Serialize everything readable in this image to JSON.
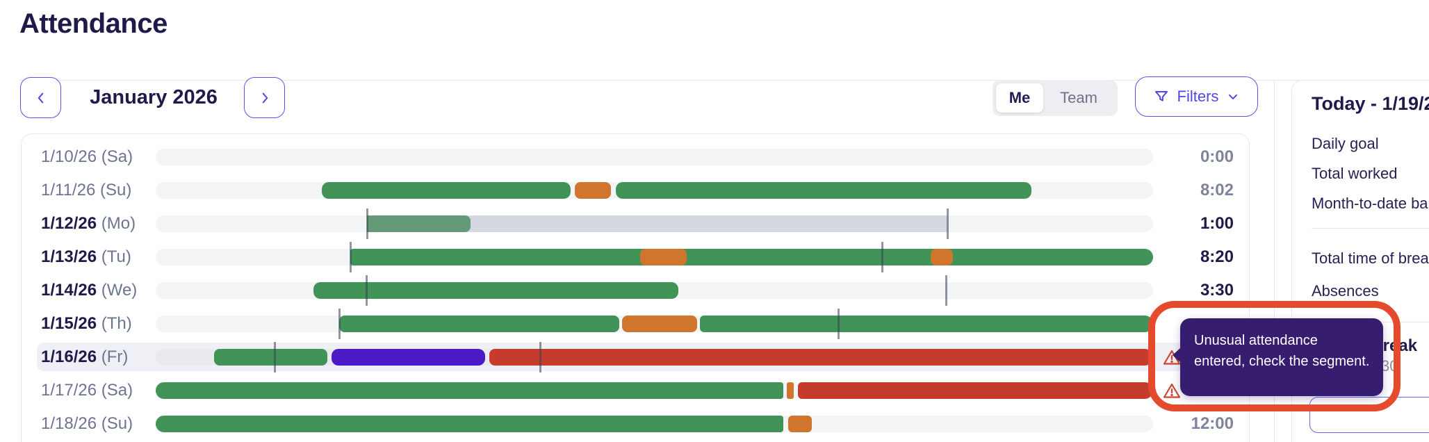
{
  "page": {
    "title": "Attendance"
  },
  "toolbar": {
    "month_label": "January 2026",
    "view_toggle": {
      "me_label": "Me",
      "team_label": "Team",
      "selected": "Me"
    },
    "filters_label": "Filters"
  },
  "timeline": {
    "track_width": 1435,
    "rows": [
      {
        "date": "1/10/26",
        "day": "(Sa)",
        "weekend": true,
        "total": "0:00",
        "highlight": false,
        "warning": false,
        "segments": [],
        "markers": []
      },
      {
        "date": "1/11/26",
        "day": "(Su)",
        "weekend": true,
        "total": "8:02",
        "highlight": false,
        "warning": false,
        "segments": [
          {
            "type": "worked",
            "start": 239,
            "end": 597,
            "radius": "10px"
          },
          {
            "type": "break",
            "start": 603,
            "end": 655,
            "radius": "8px"
          },
          {
            "type": "worked",
            "start": 662,
            "end": 1260,
            "radius": "10px"
          }
        ],
        "markers": []
      },
      {
        "date": "1/12/26",
        "day": "(Mo)",
        "weekend": false,
        "total": "1:00",
        "highlight": false,
        "warning": false,
        "segments": [
          {
            "type": "planned",
            "start": 304,
            "end": 1139,
            "radius": "0px"
          },
          {
            "type": "worked_muted",
            "start": 304,
            "end": 453,
            "radius": "0 8px 8px 0"
          }
        ],
        "markers": [
          304,
          1139
        ]
      },
      {
        "date": "1/13/26",
        "day": "(Tu)",
        "weekend": false,
        "total": "8:20",
        "highlight": false,
        "warning": false,
        "segments": [
          {
            "type": "worked",
            "start": 280,
            "end": 1435,
            "radius": "4px 12px 12px 4px"
          },
          {
            "type": "break",
            "start": 697,
            "end": 764,
            "radius": "8px"
          },
          {
            "type": "break",
            "start": 1115,
            "end": 1147,
            "radius": "8px"
          }
        ],
        "markers": [
          280,
          1045
        ]
      },
      {
        "date": "1/14/26",
        "day": "(We)",
        "weekend": false,
        "total": "3:30",
        "highlight": false,
        "warning": false,
        "segments": [
          {
            "type": "worked",
            "start": 227,
            "end": 752,
            "radius": "10px"
          }
        ],
        "markers": [
          303,
          1137
        ]
      },
      {
        "date": "1/15/26",
        "day": "(Th)",
        "weekend": false,
        "total": "",
        "highlight": false,
        "warning": false,
        "segments": [
          {
            "type": "worked",
            "start": 264,
            "end": 667,
            "radius": "8px"
          },
          {
            "type": "break",
            "start": 671,
            "end": 779,
            "radius": "8px"
          },
          {
            "type": "worked",
            "start": 783,
            "end": 1435,
            "radius": "6px 12px 12px 6px"
          }
        ],
        "markers": [
          264,
          982
        ]
      },
      {
        "date": "1/16/26",
        "day": "(Fr)",
        "weekend": false,
        "total": "",
        "highlight": true,
        "warning": true,
        "segments": [
          {
            "type": "worked",
            "start": 84,
            "end": 247,
            "radius": "8px"
          },
          {
            "type": "special",
            "start": 253,
            "end": 474,
            "radius": "10px"
          },
          {
            "type": "unusual",
            "start": 480,
            "end": 1435,
            "radius": "8px 12px 12px 8px"
          }
        ],
        "markers": [
          171,
          553
        ]
      },
      {
        "date": "1/17/26",
        "day": "(Sa)",
        "weekend": true,
        "total": "",
        "highlight": false,
        "warning": true,
        "segments": [
          {
            "type": "worked",
            "start": 0,
            "end": 903,
            "radius": "12px 4px 4px 12px"
          },
          {
            "type": "break",
            "start": 908,
            "end": 918,
            "radius": "3px"
          },
          {
            "type": "unusual",
            "start": 924,
            "end": 1435,
            "radius": "6px 12px 12px 6px"
          }
        ],
        "markers": []
      },
      {
        "date": "1/18/26",
        "day": "(Su)",
        "weekend": true,
        "total": "12:00",
        "highlight": false,
        "warning": false,
        "segments": [
          {
            "type": "worked",
            "start": 0,
            "end": 903,
            "radius": "12px 4px 4px 12px"
          },
          {
            "type": "break",
            "start": 910,
            "end": 944,
            "radius": "6px"
          }
        ],
        "markers": []
      }
    ]
  },
  "warning_tooltip": {
    "text": "Unusual attendance entered, check the segment."
  },
  "side_panel": {
    "heading": "Today - 1/19/2",
    "stats_top": [
      "Daily goal",
      "Total worked",
      "Month-to-date ba"
    ],
    "stats_bottom": [
      "Total time of brea",
      "Absences"
    ],
    "partial_stat": {
      "label": "break",
      "value": "30"
    }
  },
  "colors": {
    "worked": "#429357",
    "worked_muted": "#649a77",
    "break": "#d0752d",
    "unusual": "#c53c2c",
    "special": "#4b19c5",
    "planned": "#d5d8e0",
    "accent_indigo": "#4f46e5",
    "annotation_red": "#e54a2d",
    "tooltip_bg": "#371d70"
  }
}
